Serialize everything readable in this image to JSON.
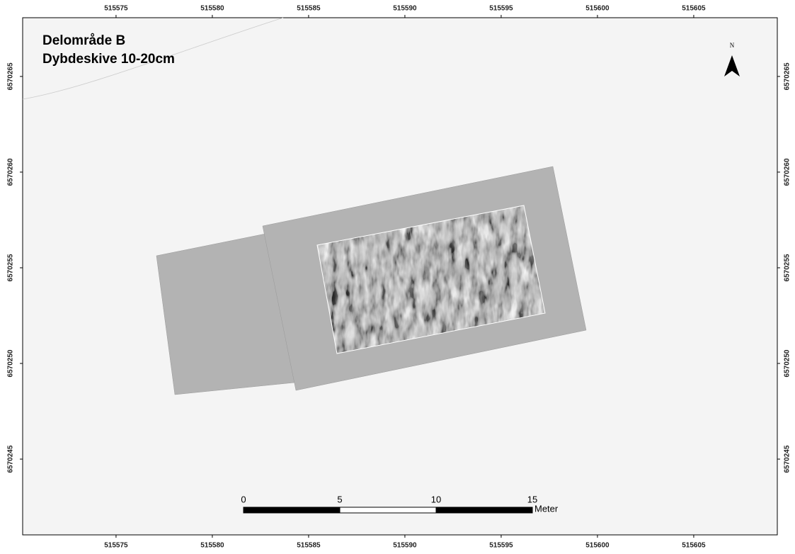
{
  "map": {
    "title": [
      "Delområde B",
      "Dybdeskive 10-20cm"
    ],
    "north": "N",
    "xlim": [
      515570.15,
      515609.34
    ],
    "ylim": [
      6570241.04,
      6570268.07
    ],
    "xticks": [
      515575,
      515580,
      515585,
      515590,
      515595,
      515600,
      515605
    ],
    "yticks": [
      6570245,
      6570250,
      6570255,
      6570260,
      6570265
    ],
    "scale_bar": {
      "ticks": [
        0,
        5,
        10,
        15
      ],
      "unit": "Meter"
    }
  }
}
